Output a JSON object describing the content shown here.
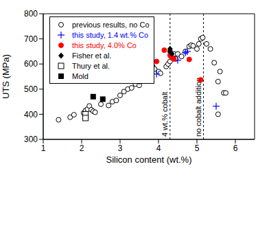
{
  "chart_data": {
    "type": "scatter",
    "x_label": "Silicon content (wt.%)",
    "y_label": "UTS (MPa)",
    "xlim": [
      1,
      6.5
    ],
    "xticks": [
      1,
      2,
      3,
      4,
      5,
      6
    ],
    "ylim": [
      300,
      800
    ],
    "yticks": [
      300,
      400,
      500,
      600,
      700,
      800
    ],
    "grid": false,
    "legend": "upper left",
    "series": [
      {
        "name": "previous results, no Co",
        "color": "#000000",
        "marker": "circle_open",
        "x": [
          1.4,
          1.7,
          1.8,
          2.05,
          2.1,
          2.15,
          2.2,
          2.25,
          2.3,
          2.35,
          2.5,
          2.7,
          2.8,
          2.9,
          3.0,
          3.1,
          3.2,
          3.3,
          3.4,
          3.5,
          3.5,
          3.6,
          3.7,
          3.8,
          3.85,
          3.9,
          4.0,
          4.05,
          4.2,
          4.25,
          4.3,
          4.35,
          4.4,
          4.45,
          4.5,
          4.6,
          4.7,
          4.8,
          4.85,
          4.9,
          5.0,
          5.05,
          5.1,
          5.15,
          5.25,
          5.35,
          5.45,
          5.55,
          5.6,
          5.7,
          5.75,
          5.55
        ],
        "y": [
          378,
          388,
          398,
          405,
          415,
          420,
          433,
          418,
          412,
          408,
          440,
          435,
          450,
          455,
          475,
          490,
          500,
          505,
          520,
          515,
          530,
          550,
          560,
          570,
          590,
          580,
          570,
          563,
          590,
          600,
          610,
          625,
          640,
          620,
          640,
          630,
          650,
          670,
          675,
          672,
          660,
          680,
          700,
          705,
          680,
          660,
          605,
          530,
          570,
          485,
          485,
          400
        ]
      },
      {
        "name": "this study, 1.4 wt.% Co",
        "color": "#0000ff",
        "marker": "plus",
        "x": [
          3.95,
          4.35,
          4.5,
          4.7,
          4.75,
          5.5
        ],
        "y": [
          560,
          625,
          615,
          645,
          650,
          432
        ]
      },
      {
        "name": "this study, 4.0% Co",
        "color": "#ff0000",
        "marker": "circle",
        "x": [
          3.95,
          4.15,
          4.3,
          4.3,
          4.35,
          4.4,
          4.8,
          5.1
        ],
        "y": [
          610,
          655,
          650,
          635,
          625,
          620,
          618,
          537
        ]
      },
      {
        "name": "Fisher et al.",
        "color": "#000000",
        "marker": "diamond",
        "x": [
          3.8,
          3.8,
          4.3,
          4.3,
          4.35
        ],
        "y": [
          585,
          575,
          660,
          650,
          640
        ]
      },
      {
        "name": "Thury et al.",
        "color": "#000000",
        "marker": "square_open",
        "x": [
          2.1,
          2.1
        ],
        "y": [
          400,
          385
        ]
      },
      {
        "name": "Mold",
        "color": "#000000",
        "marker": "square",
        "x": [
          2.3,
          2.55
        ],
        "y": [
          470,
          460
        ]
      }
    ],
    "reference_lines": [
      {
        "x": 4.3,
        "label": "4 wt.% cobalt",
        "line_style": "dashed"
      },
      {
        "x": 5.17,
        "label": "no cobalt addition",
        "line_style": "dashed"
      }
    ]
  }
}
